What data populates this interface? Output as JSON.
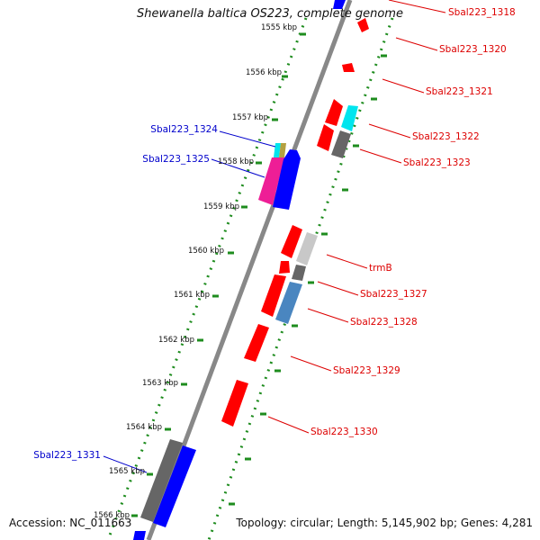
{
  "title": "Shewanella baltica OS223, complete genome",
  "footer": {
    "accession": "Accession: NC_011663",
    "summary": "Topology: circular; Length: 5,145,902 bp; Genes: 4,281"
  },
  "colors": {
    "background": "#ffffff",
    "backbone": "#808080",
    "tick_dots": "#1e8c1e",
    "forward_label": "#0000cc",
    "reverse_label": "#dd0000",
    "red": "#ff0000",
    "blue": "#0000ff",
    "cyan": "#00e5ee",
    "gray": "#777777",
    "lightgray": "#c8c8c8",
    "steelblue": "#4a86c0",
    "magenta": "#ee1e96",
    "olive": "#b4a040"
  },
  "scale_labels": [
    "1555 kbp",
    "1556 kbp",
    "1557 kbp",
    "1558 kbp",
    "1559 kbp",
    "1560 kbp",
    "1561 kbp",
    "1562 kbp",
    "1563 kbp",
    "1564 kbp",
    "1565 kbp",
    "1566 kbp"
  ],
  "forward_gene_labels": [
    "Sbal223_1324",
    "Sbal223_1325",
    "Sbal223_1331"
  ],
  "reverse_gene_labels": [
    "Sbal223_1318",
    "Sbal223_1320",
    "Sbal223_1321",
    "Sbal223_1322",
    "Sbal223_1323",
    "trmB",
    "Sbal223_1327",
    "Sbal223_1328",
    "Sbal223_1329",
    "Sbal223_1330"
  ]
}
